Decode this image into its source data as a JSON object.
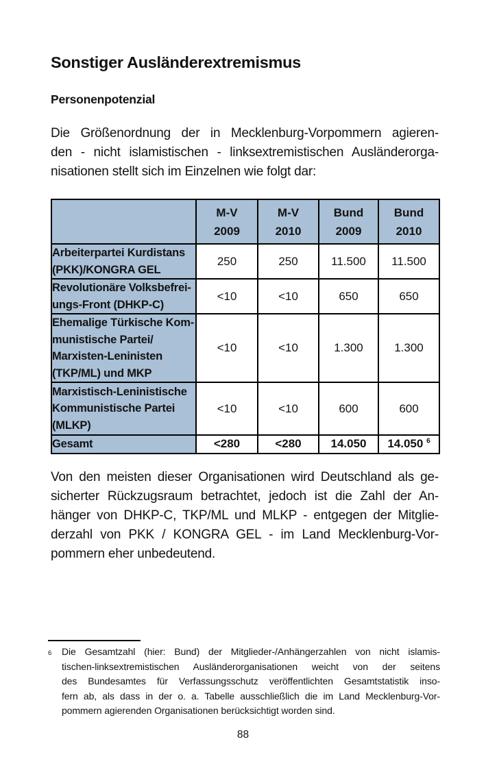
{
  "page": {
    "title": "Sonstiger Ausländerextremismus",
    "subtitle": "Personenpotenzial",
    "page_number": "88"
  },
  "intro_paragraph": {
    "lines": [
      "Die Größenordnung der in Mecklenburg-Vorpommern agieren-",
      "den - nicht islamistischen - linksextremistischen Ausländerorga-",
      "nisationen stellt sich im Einzelnen wie folgt dar:"
    ]
  },
  "table": {
    "colors": {
      "header_bg": "#a9c0d6",
      "border": "#000000",
      "value_bg": "#ffffff"
    },
    "columns": [
      [
        "M-V",
        "2009"
      ],
      [
        "M-V",
        "2010"
      ],
      [
        "Bund",
        "2009"
      ],
      [
        "Bund",
        "2010"
      ]
    ],
    "rows": [
      {
        "label_lines": [
          "Arbeiterpartei Kurdistans",
          "(PKK)/KONGRA GEL"
        ],
        "values": [
          "250",
          "250",
          "11.500",
          "11.500"
        ],
        "emphasis": false,
        "footnote_ref": ""
      },
      {
        "label_lines": [
          "Revolutionäre Volksbefrei-",
          "ungs-Front (DHKP-C)"
        ],
        "values": [
          "<10",
          "<10",
          "650",
          "650"
        ],
        "emphasis": false,
        "footnote_ref": ""
      },
      {
        "label_lines": [
          "Ehemalige Türkische Kom-",
          "munistische Partei/",
          "Marxisten-Leninisten",
          "(TKP/ML) und MKP"
        ],
        "values": [
          "<10",
          "<10",
          "1.300",
          "1.300"
        ],
        "emphasis": false,
        "footnote_ref": ""
      },
      {
        "label_lines": [
          "Marxistisch-Leninistische",
          "Kommunistische Partei",
          "(MLKP)"
        ],
        "values": [
          "<10",
          "<10",
          "600",
          "600"
        ],
        "emphasis": false,
        "footnote_ref": ""
      },
      {
        "label_lines": [
          "Gesamt"
        ],
        "values": [
          "<280",
          "<280",
          "14.050",
          "14.050"
        ],
        "emphasis": true,
        "footnote_ref": "6"
      }
    ]
  },
  "body_paragraph": {
    "lines": [
      "Von den meisten dieser Organisationen wird Deutschland als ge-",
      "sicherter Rückzugsraum betrachtet, jedoch ist die Zahl der An-",
      "hänger von DHKP-C, TKP/ML und MLKP - entgegen der Mitglie-",
      "derzahl von PKK / KONGRA GEL - im Land Mecklenburg-Vor-",
      "pommern eher unbedeutend."
    ]
  },
  "footnote": {
    "marker": "6",
    "lines": [
      "Die Gesamtzahl (hier: Bund) der Mitglieder-/Anhängerzahlen von nicht islamis-",
      "tischen-linksextremistischen Ausländerorganisationen weicht von der seitens",
      "des Bundesamtes für Verfassungsschutz veröffentlichten Gesamtstatistik inso-",
      "fern ab, als dass in der o. a. Tabelle ausschließlich die im Land Mecklenburg-Vor-",
      "pommern agierenden Organisationen berücksichtigt worden sind."
    ]
  }
}
